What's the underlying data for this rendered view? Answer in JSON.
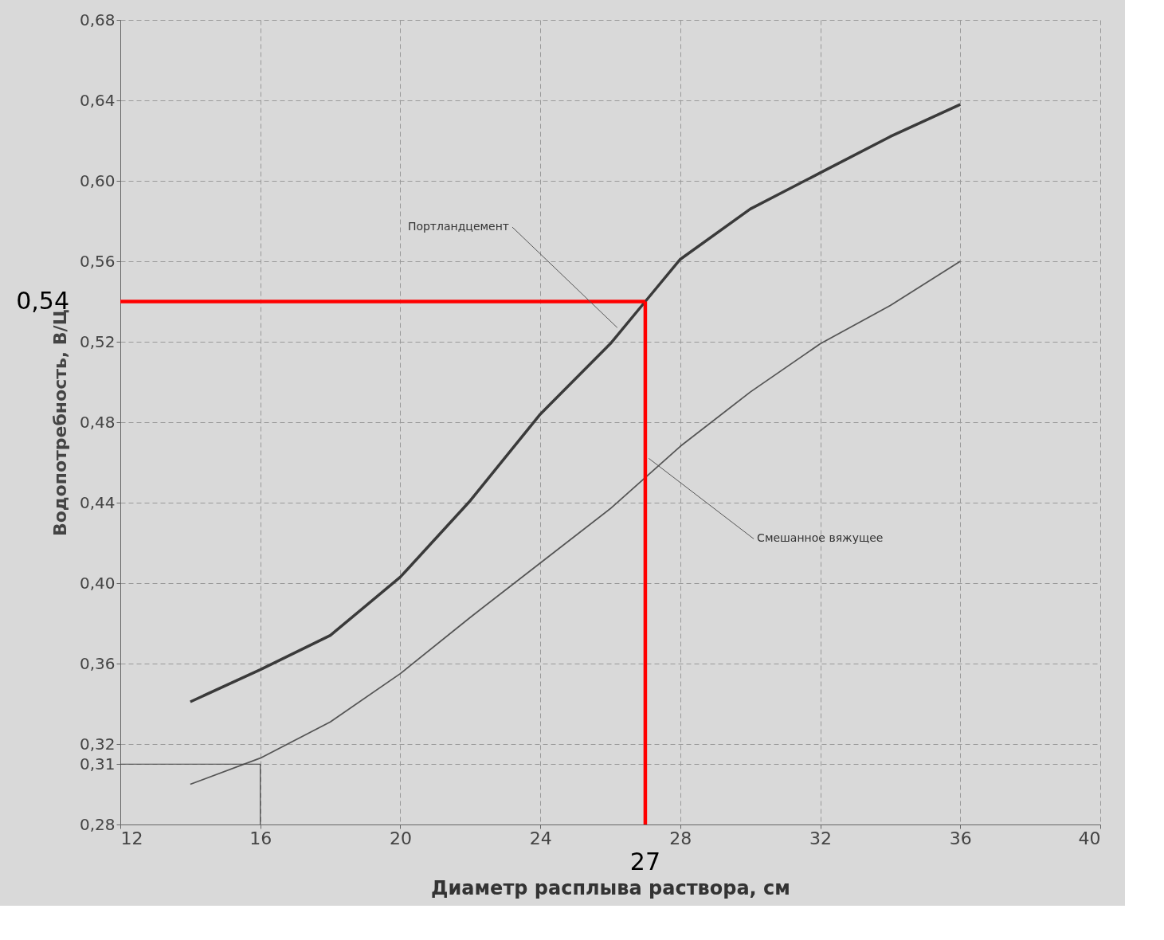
{
  "chart_data": {
    "type": "line",
    "xlabel": "Диаметр расплыва раствора, см",
    "ylabel": "Водопотребность, В/Ц",
    "xlim": [
      12,
      40
    ],
    "xticks": [
      12,
      16,
      20,
      24,
      28,
      32,
      36,
      40
    ],
    "ylim": [
      0.28,
      0.68
    ],
    "yticks": [
      {
        "value": 0.28,
        "label": "0,28"
      },
      {
        "value": 0.31,
        "label": "0,31"
      },
      {
        "value": 0.32,
        "label": "0,32"
      },
      {
        "value": 0.36,
        "label": "0,36"
      },
      {
        "value": 0.4,
        "label": "0,40"
      },
      {
        "value": 0.44,
        "label": "0,44"
      },
      {
        "value": 0.48,
        "label": "0,48"
      },
      {
        "value": 0.52,
        "label": "0,52"
      },
      {
        "value": 0.56,
        "label": "0,56"
      },
      {
        "value": 0.6,
        "label": "0,60"
      },
      {
        "value": 0.64,
        "label": "0,64"
      },
      {
        "value": 0.68,
        "label": "0,68"
      }
    ],
    "grid": true,
    "series": [
      {
        "color": "#3a3a3a",
        "x": [
          14,
          16,
          18,
          20,
          22,
          24,
          26,
          27,
          28,
          30,
          32,
          34,
          36
        ],
        "values": [
          0.341,
          0.357,
          0.374,
          0.403,
          0.441,
          0.484,
          0.519,
          0.54,
          0.561,
          0.586,
          0.604,
          0.622,
          0.638
        ]
      },
      {
        "color": "#555555",
        "x": [
          14,
          16,
          18,
          20,
          22,
          24,
          26,
          28,
          30,
          32,
          34,
          36
        ],
        "values": [
          0.3,
          0.313,
          0.331,
          0.355,
          0.383,
          0.41,
          0.437,
          0.468,
          0.495,
          0.519,
          0.538,
          0.56
        ]
      },
      {
        "color": "#ff0000",
        "x": [
          27,
          12
        ],
        "values": [
          0.54,
          0.54
        ]
      },
      {
        "color": "#ff0000",
        "x": [
          27,
          27
        ],
        "values": [
          0.28,
          0.54
        ]
      },
      {
        "color": "#444444",
        "x": [
          12,
          16,
          16
        ],
        "values": [
          0.31,
          0.31,
          0.28
        ]
      }
    ],
    "annotations": [
      {
        "text": "Портландцемент",
        "x": 26.2,
        "y": 0.527
      },
      {
        "text": "Смешанное вяжущее",
        "x": 27.1,
        "y": 0.462
      },
      {
        "text": "0,54",
        "x": 12,
        "y": 0.54
      },
      {
        "text": "27",
        "x": 27,
        "y": 0.28
      }
    ]
  }
}
